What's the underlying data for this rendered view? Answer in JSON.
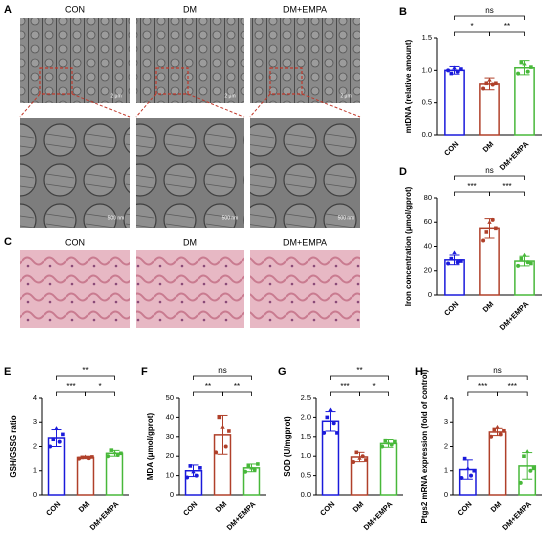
{
  "micrographs": {
    "A": {
      "letter": "A",
      "labels": [
        "CON",
        "DM",
        "DM+EMPA"
      ],
      "scale_top": [
        "2 μm",
        "2 μm",
        "2 μm"
      ],
      "scale_bottom": [
        "500 nm",
        "500 nm",
        "500 nm"
      ]
    },
    "C": {
      "letter": "C",
      "labels": [
        "CON",
        "DM",
        "DM+EMPA"
      ]
    }
  },
  "chart_data": [
    {
      "type": "bar",
      "letter": "B",
      "title": "mtDNA (relative amount)",
      "categories": [
        "CON",
        "DM",
        "DM+EMPA"
      ],
      "colors": [
        "#1a1adb",
        "#b0402a",
        "#48b83a"
      ],
      "values": [
        1.0,
        0.79,
        1.04
      ],
      "errors": [
        0.06,
        0.09,
        0.11
      ],
      "points": [
        [
          1.0,
          0.95,
          1.04,
          0.98,
          1.02
        ],
        [
          0.72,
          0.8,
          0.85,
          0.78,
          0.8
        ],
        [
          0.95,
          1.12,
          1.1,
          0.98,
          1.05
        ]
      ],
      "ylim": [
        0,
        1.5
      ],
      "yticks": [
        {
          "value": 0,
          "label": "0.0"
        },
        {
          "value": 0.5,
          "label": "0.5"
        },
        {
          "value": 1,
          "label": "1.0"
        },
        {
          "value": 1.5,
          "label": "1.5"
        }
      ],
      "significance": [
        {
          "pair": [
            "CON",
            "DM"
          ],
          "label": "*"
        },
        {
          "pair": [
            "DM",
            "DM+EMPA"
          ],
          "label": "**"
        },
        {
          "pair": [
            "CON",
            "DM+EMPA"
          ],
          "label": "ns"
        }
      ]
    },
    {
      "type": "bar",
      "letter": "D",
      "title": "Iron concentration (μmol/gprot)",
      "categories": [
        "CON",
        "DM",
        "DM+EMPA"
      ],
      "colors": [
        "#1a1adb",
        "#b0402a",
        "#48b83a"
      ],
      "values": [
        29,
        55,
        28
      ],
      "errors": [
        4,
        8,
        4
      ],
      "points": [
        [
          26,
          30,
          35,
          27,
          28
        ],
        [
          45,
          52,
          60,
          62,
          55
        ],
        [
          24,
          30,
          33,
          27,
          26
        ]
      ],
      "ylim": [
        0,
        80
      ],
      "yticks": [
        0,
        20,
        40,
        60,
        80
      ],
      "significance": [
        {
          "pair": [
            "CON",
            "DM"
          ],
          "label": "***"
        },
        {
          "pair": [
            "DM",
            "DM+EMPA"
          ],
          "label": "***"
        },
        {
          "pair": [
            "CON",
            "DM+EMPA"
          ],
          "label": "ns"
        }
      ]
    },
    {
      "type": "bar",
      "letter": "E",
      "title": "GSH/GSSG ratio",
      "categories": [
        "CON",
        "DM",
        "DM+EMPA"
      ],
      "colors": [
        "#1a1adb",
        "#b0402a",
        "#48b83a"
      ],
      "values": [
        2.35,
        1.55,
        1.72
      ],
      "errors": [
        0.35,
        0.05,
        0.12
      ],
      "points": [
        [
          2.0,
          2.3,
          2.75,
          2.2,
          2.5
        ],
        [
          1.5,
          1.55,
          1.58,
          1.52,
          1.57
        ],
        [
          1.6,
          1.85,
          1.75,
          1.65,
          1.72
        ]
      ],
      "ylim": [
        0,
        4
      ],
      "yticks": [
        0,
        1,
        2,
        3,
        4
      ],
      "significance": [
        {
          "pair": [
            "CON",
            "DM"
          ],
          "label": "***"
        },
        {
          "pair": [
            "DM",
            "DM+EMPA"
          ],
          "label": "*"
        },
        {
          "pair": [
            "CON",
            "DM+EMPA"
          ],
          "label": "**"
        }
      ]
    },
    {
      "type": "bar",
      "letter": "F",
      "title": "MDA (μmol/gprot)",
      "categories": [
        "CON",
        "DM",
        "DM+EMPA"
      ],
      "colors": [
        "#1a1adb",
        "#b0402a",
        "#48b83a"
      ],
      "values": [
        12.5,
        31,
        14
      ],
      "errors": [
        3,
        10,
        2
      ],
      "points": [
        [
          9,
          15,
          12,
          10,
          14
        ],
        [
          22,
          40,
          35,
          25,
          33
        ],
        [
          12,
          15,
          14,
          13,
          16
        ]
      ],
      "ylim": [
        0,
        50
      ],
      "yticks": [
        0,
        10,
        20,
        30,
        40,
        50
      ],
      "significance": [
        {
          "pair": [
            "CON",
            "DM"
          ],
          "label": "**"
        },
        {
          "pair": [
            "DM",
            "DM+EMPA"
          ],
          "label": "**"
        },
        {
          "pair": [
            "CON",
            "DM+EMPA"
          ],
          "label": "ns"
        }
      ]
    },
    {
      "type": "bar",
      "letter": "G",
      "title": "SOD (U/mgprot)",
      "categories": [
        "CON",
        "DM",
        "DM+EMPA"
      ],
      "colors": [
        "#1a1adb",
        "#b0402a",
        "#48b83a"
      ],
      "values": [
        1.9,
        0.98,
        1.33
      ],
      "errors": [
        0.25,
        0.12,
        0.1
      ],
      "points": [
        [
          1.6,
          2.0,
          2.2,
          1.85,
          1.6
        ],
        [
          0.85,
          1.1,
          0.95,
          1.0,
          0.9
        ],
        [
          1.25,
          1.4,
          1.35,
          1.3,
          1.38
        ]
      ],
      "ylim": [
        0,
        2.5
      ],
      "yticks": [
        {
          "value": 0,
          "label": "0.0"
        },
        {
          "value": 0.5,
          "label": "0.5"
        },
        {
          "value": 1,
          "label": "1.0"
        },
        {
          "value": 1.5,
          "label": "1.5"
        },
        {
          "value": 2,
          "label": "2.0"
        },
        {
          "value": 2.5,
          "label": "2.5"
        }
      ],
      "significance": [
        {
          "pair": [
            "CON",
            "DM"
          ],
          "label": "***"
        },
        {
          "pair": [
            "DM",
            "DM+EMPA"
          ],
          "label": "*"
        },
        {
          "pair": [
            "CON",
            "DM+EMPA"
          ],
          "label": "**"
        }
      ]
    },
    {
      "type": "bar",
      "letter": "H",
      "title": "Ptgs2 mRNA expression (fold of control)",
      "categories": [
        "CON",
        "DM",
        "DM+EMPA"
      ],
      "colors": [
        "#1a1adb",
        "#b0402a",
        "#48b83a"
      ],
      "values": [
        1.05,
        2.6,
        1.2
      ],
      "errors": [
        0.4,
        0.15,
        0.55
      ],
      "points": [
        [
          0.7,
          1.5,
          1.1,
          0.8,
          1.0
        ],
        [
          2.4,
          2.7,
          2.8,
          2.5,
          2.65
        ],
        [
          0.5,
          1.6,
          1.8,
          1.0,
          1.1
        ]
      ],
      "ylim": [
        0,
        4
      ],
      "yticks": [
        0,
        1,
        2,
        3,
        4
      ],
      "significance": [
        {
          "pair": [
            "CON",
            "DM"
          ],
          "label": "***"
        },
        {
          "pair": [
            "DM",
            "DM+EMPA"
          ],
          "label": "***"
        },
        {
          "pair": [
            "CON",
            "DM+EMPA"
          ],
          "label": "ns"
        }
      ]
    }
  ]
}
